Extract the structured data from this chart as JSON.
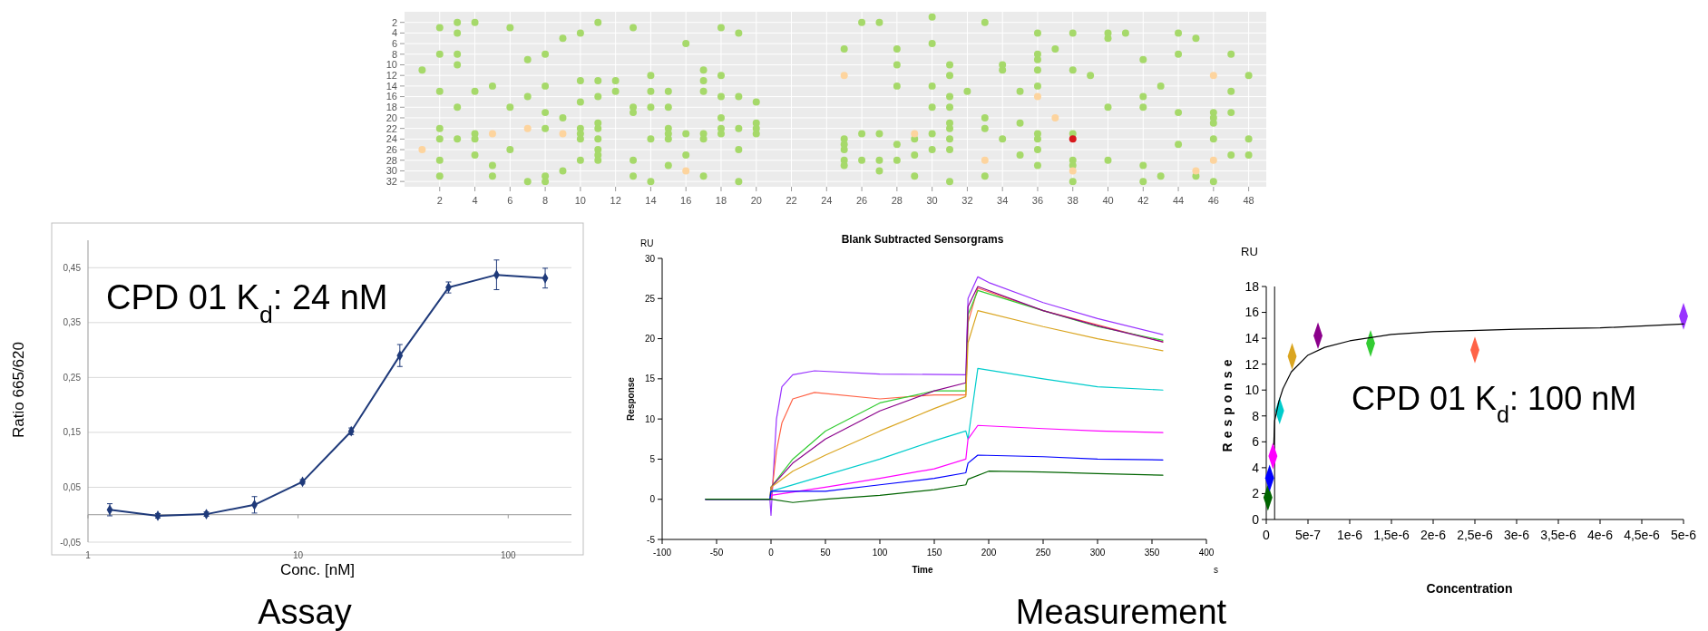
{
  "chart_data": [
    {
      "type": "scatter",
      "xlim": [
        0,
        49
      ],
      "xticks": [
        2,
        4,
        6,
        8,
        10,
        12,
        14,
        16,
        18,
        20,
        22,
        24,
        26,
        28,
        30,
        32,
        34,
        36,
        38,
        40,
        42,
        44,
        46,
        48
      ],
      "ylim": [
        33,
        0
      ],
      "yticks": [
        2,
        4,
        6,
        8,
        10,
        12,
        14,
        16,
        18,
        20,
        22,
        24,
        26,
        28,
        30,
        32
      ],
      "grid": true,
      "marker": "circle",
      "series": [
        {
          "color": "#a6d96a",
          "x": [
            30,
            3,
            4,
            11,
            26,
            27,
            33,
            2,
            6,
            13,
            18,
            3,
            10,
            19,
            36,
            38,
            40,
            41,
            44,
            9,
            40,
            45,
            16,
            30,
            25,
            28,
            37,
            2,
            3,
            8,
            36,
            44,
            47,
            7,
            36,
            42,
            3,
            28,
            31,
            34,
            1,
            17,
            34,
            36,
            38,
            14,
            18,
            31,
            39,
            48,
            10,
            11,
            12,
            17,
            5,
            8,
            28,
            30,
            36,
            43,
            2,
            4,
            12,
            14,
            15,
            17,
            32,
            35,
            47,
            7,
            11,
            18,
            19,
            31,
            42,
            10,
            20,
            3,
            6,
            13,
            14,
            15,
            30,
            31,
            40,
            42,
            8,
            13,
            44,
            46,
            47,
            9,
            18,
            33,
            46,
            11,
            20,
            31,
            35,
            46,
            2,
            8,
            10,
            11,
            15,
            18,
            19,
            20,
            31,
            33,
            4,
            10,
            15,
            16,
            17,
            18,
            20,
            26,
            27,
            30,
            36,
            38,
            2,
            3,
            4,
            10,
            11,
            14,
            15,
            17,
            25,
            29,
            31,
            34,
            36,
            46,
            48,
            25,
            28,
            44,
            6,
            11,
            19,
            25,
            30,
            31,
            36,
            4,
            11,
            16,
            29,
            35,
            47,
            48,
            2,
            10,
            11,
            13,
            25,
            26,
            27,
            28,
            38,
            40,
            5,
            15,
            25,
            36,
            38,
            42,
            9,
            27,
            2,
            5,
            8,
            13,
            17,
            29,
            33,
            43,
            45,
            7,
            8,
            14,
            19,
            31,
            38,
            42,
            46
          ],
          "values": [
            1,
            2,
            2,
            2,
            2,
            2,
            2,
            3,
            3,
            3,
            3,
            4,
            4,
            4,
            4,
            4,
            4,
            4,
            4,
            5,
            5,
            5,
            6,
            6,
            7,
            7,
            7,
            8,
            8,
            8,
            8,
            8,
            8,
            9,
            9,
            9,
            10,
            10,
            10,
            10,
            11,
            11,
            11,
            11,
            11,
            12,
            12,
            12,
            12,
            12,
            13,
            13,
            13,
            13,
            14,
            14,
            14,
            14,
            14,
            14,
            15,
            15,
            15,
            15,
            15,
            15,
            15,
            15,
            15,
            16,
            16,
            16,
            16,
            16,
            16,
            17,
            17,
            18,
            18,
            18,
            18,
            18,
            18,
            18,
            18,
            18,
            19,
            19,
            19,
            19,
            19,
            20,
            20,
            20,
            20,
            21,
            21,
            21,
            21,
            21,
            22,
            22,
            22,
            22,
            22,
            22,
            22,
            22,
            22,
            22,
            23,
            23,
            23,
            23,
            23,
            23,
            23,
            23,
            23,
            23,
            23,
            23,
            24,
            24,
            24,
            24,
            24,
            24,
            24,
            24,
            24,
            24,
            24,
            24,
            24,
            24,
            24,
            25,
            25,
            25,
            26,
            26,
            26,
            26,
            26,
            26,
            26,
            27,
            27,
            27,
            27,
            27,
            27,
            27,
            28,
            28,
            28,
            28,
            28,
            28,
            28,
            28,
            28,
            28,
            29,
            29,
            29,
            29,
            29,
            29,
            30,
            30,
            31,
            31,
            31,
            31,
            31,
            31,
            31,
            31,
            31,
            32,
            32,
            32,
            32,
            32,
            32,
            32,
            32
          ]
        },
        {
          "color": "#fdd49e",
          "x": [
            25,
            46,
            36,
            37,
            7,
            5,
            9,
            29,
            1,
            33,
            46,
            16,
            38,
            45
          ],
          "values": [
            12,
            12,
            16,
            20,
            22,
            23,
            23,
            23,
            26,
            28,
            28,
            30,
            30,
            30
          ]
        },
        {
          "color": "#d7191c",
          "x": [
            38
          ],
          "values": [
            24
          ]
        }
      ]
    },
    {
      "type": "line",
      "xlabel": "Conc. [nM]",
      "ylabel": "Ratio 665/620",
      "log": "x",
      "xlim": [
        1,
        200
      ],
      "xticks": [
        1,
        10,
        100
      ],
      "ylim": [
        -0.05,
        0.5
      ],
      "yticks": [
        {
          "value": -0.05,
          "label": "-0,05"
        },
        {
          "value": 0.05,
          "label": "0,05"
        },
        {
          "value": 0.15,
          "label": "0,15"
        },
        {
          "value": 0.25,
          "label": "0,25"
        },
        {
          "value": 0.35,
          "label": "0,35"
        },
        {
          "value": 0.45,
          "label": "0,45"
        }
      ],
      "grid": "y",
      "marker": "diamond",
      "color": "#1f3a7a",
      "x": [
        1.27,
        2.15,
        3.66,
        6.2,
        10.5,
        17.9,
        30.5,
        52,
        88,
        150
      ],
      "values": [
        0.009,
        -0.002,
        0.001,
        0.018,
        0.06,
        0.152,
        0.29,
        0.414,
        0.437,
        0.431
      ],
      "errors": [
        0.011,
        0.004,
        0.004,
        0.015,
        0.004,
        0.006,
        0.02,
        0.01,
        0.027,
        0.018
      ],
      "annotations": [
        "CPD 01 K$_{d}$: 24 nM",
        "Assay"
      ]
    },
    {
      "type": "line",
      "title": "Blank Subtracted Sensorgrams",
      "xlabel": "Time",
      "ylabel": "Response",
      "xlim": [
        -100,
        400
      ],
      "xticks": [
        -100,
        -50,
        0,
        50,
        100,
        150,
        200,
        250,
        300,
        350,
        400
      ],
      "ylim": [
        -5,
        30
      ],
      "yticks": [
        -5,
        0,
        5,
        10,
        15,
        20,
        25,
        30
      ],
      "annotations": [
        "RU",
        "s",
        "Measurement"
      ],
      "series": [
        {
          "color": "#9933ff",
          "x": [
            -60,
            -1,
            0,
            5,
            10,
            20,
            40,
            100,
            179,
            181,
            190,
            200,
            250,
            300,
            360
          ],
          "values": [
            0,
            0,
            -2,
            10,
            14,
            15.5,
            16,
            15.6,
            15.5,
            25,
            27.7,
            27,
            24.5,
            22.5,
            20.5
          ]
        },
        {
          "color": "#ff6347",
          "x": [
            -60,
            -1,
            0,
            5,
            10,
            20,
            40,
            100,
            150,
            179,
            181,
            190,
            250,
            300,
            360
          ],
          "values": [
            0,
            0,
            0,
            6,
            9.5,
            12.5,
            13.3,
            12.5,
            13,
            13,
            22,
            26.3,
            23.5,
            null,
            19.6
          ]
        },
        {
          "color": "#33cc33",
          "x": [
            -60,
            -1,
            0,
            20,
            50,
            100,
            150,
            179,
            181,
            190,
            250,
            300,
            360
          ],
          "values": [
            0,
            0,
            1.5,
            5,
            8.5,
            12,
            13.5,
            13.5,
            23,
            26,
            23.5,
            21.5,
            19.8
          ]
        },
        {
          "color": "#8b008b",
          "x": [
            -60,
            -1,
            0,
            20,
            50,
            100,
            150,
            179,
            181,
            190,
            250,
            300,
            360
          ],
          "values": [
            0,
            0,
            1.5,
            4.5,
            7.5,
            11,
            13.5,
            14.5,
            24,
            26.5,
            23.5,
            21.6,
            19.6
          ]
        },
        {
          "color": "#daa520",
          "x": [
            -60,
            -1,
            0,
            20,
            50,
            100,
            150,
            179,
            181,
            190,
            250,
            300,
            360
          ],
          "values": [
            0,
            0,
            1.5,
            3.5,
            5.5,
            8.5,
            11.3,
            12.8,
            19.5,
            23.5,
            21.5,
            20,
            18.5
          ]
        },
        {
          "color": "#00cccc",
          "x": [
            -60,
            -1,
            0,
            50,
            100,
            150,
            179,
            181,
            190,
            250,
            300,
            360
          ],
          "values": [
            0,
            0,
            1,
            3,
            5,
            7.3,
            8.5,
            7.5,
            16.3,
            15,
            14,
            13.6
          ]
        },
        {
          "color": "#ff00ff",
          "x": [
            -60,
            -1,
            0,
            50,
            100,
            150,
            179,
            181,
            190,
            250,
            300,
            360
          ],
          "values": [
            0,
            0,
            0.5,
            1.5,
            2.6,
            3.8,
            5,
            7.5,
            9.2,
            8.8,
            8.5,
            8.3
          ]
        },
        {
          "color": "#0000ff",
          "x": [
            -60,
            -1,
            0,
            50,
            100,
            150,
            179,
            181,
            190,
            250,
            300,
            360
          ],
          "values": [
            0,
            0,
            1,
            1,
            1.8,
            2.6,
            3.3,
            4.5,
            5.5,
            5.3,
            5,
            4.9
          ]
        },
        {
          "color": "#006400",
          "x": [
            -60,
            -1,
            0,
            20,
            50,
            100,
            150,
            179,
            181,
            200,
            250,
            300,
            360
          ],
          "values": [
            0,
            0,
            0,
            -0.4,
            0,
            0.5,
            1.2,
            1.8,
            2.5,
            3.5,
            3.4,
            3.2,
            3
          ]
        }
      ]
    },
    {
      "type": "scatter",
      "xlabel": "Concentration",
      "ylabel": "Response",
      "marker": "diamond",
      "xlim": [
        0,
        5e-06
      ],
      "xticks": [
        0,
        {
          "value": 5e-07,
          "label": "5e-7"
        },
        {
          "value": 1e-06,
          "label": "1e-6"
        },
        {
          "value": 1.5e-06,
          "label": "1,5e-6"
        },
        {
          "value": 2e-06,
          "label": "2e-6"
        },
        {
          "value": 2.5e-06,
          "label": "2,5e-6"
        },
        {
          "value": 3e-06,
          "label": "3e-6"
        },
        {
          "value": 3.5e-06,
          "label": "3,5e-6"
        },
        {
          "value": 4e-06,
          "label": "4e-6"
        },
        {
          "value": 4.5e-06,
          "label": "4,5e-6"
        },
        {
          "value": 5e-06,
          "label": "5e-6"
        }
      ],
      "ylim": [
        0,
        18
      ],
      "yticks": [
        0,
        2,
        4,
        6,
        8,
        10,
        12,
        14,
        16,
        18
      ],
      "ref_lines": [
        {
          "axis": "x",
          "value": 1e-07,
          "color": "#000000"
        }
      ],
      "annotations": [
        "RU",
        "CPD 01 K$_{d}$: 100 nM"
      ],
      "series": [
        {
          "x": [
            2e-08,
            4e-08,
            8e-08,
            1.6e-07,
            3.1e-07,
            6.2e-07,
            1.25e-06,
            2.5e-06,
            5e-06
          ],
          "values": [
            1.7,
            3.2,
            4.9,
            8.4,
            12.6,
            14.2,
            13.6,
            13.1,
            15.7
          ],
          "colors": [
            "#006400",
            "#0000ff",
            "#ff00ff",
            "#00cccc",
            "#daa520",
            "#8b008b",
            "#33cc33",
            "#ff6347",
            "#9933ff"
          ]
        },
        {
          "type": "line",
          "color": "#000000",
          "marker": "none",
          "x": [
            9e-08,
            1e-07,
            1.5e-07,
            2e-07,
            3e-07,
            5e-07,
            7e-07,
            1e-06,
            1.5e-06,
            2e-06,
            3e-06,
            4e-06,
            5e-06
          ],
          "values": [
            5.8,
            7.6,
            9.1,
            10.1,
            11.4,
            12.7,
            13.3,
            13.8,
            14.3,
            14.5,
            14.7,
            14.8,
            15.1
          ]
        }
      ]
    }
  ]
}
